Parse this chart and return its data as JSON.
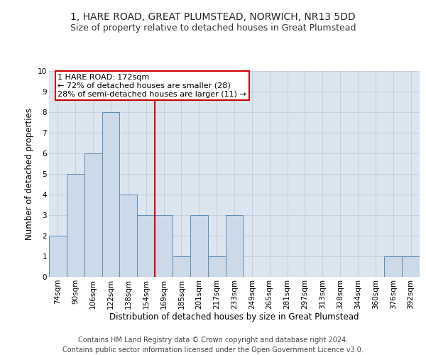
{
  "title": "1, HARE ROAD, GREAT PLUMSTEAD, NORWICH, NR13 5DD",
  "subtitle": "Size of property relative to detached houses in Great Plumstead",
  "xlabel": "Distribution of detached houses by size in Great Plumstead",
  "ylabel": "Number of detached properties",
  "categories": [
    "74sqm",
    "90sqm",
    "106sqm",
    "122sqm",
    "138sqm",
    "154sqm",
    "169sqm",
    "185sqm",
    "201sqm",
    "217sqm",
    "233sqm",
    "249sqm",
    "265sqm",
    "281sqm",
    "297sqm",
    "313sqm",
    "328sqm",
    "344sqm",
    "360sqm",
    "376sqm",
    "392sqm"
  ],
  "values": [
    2,
    5,
    6,
    8,
    4,
    3,
    3,
    1,
    3,
    1,
    3,
    0,
    0,
    0,
    0,
    0,
    0,
    0,
    0,
    1,
    1
  ],
  "bar_color": "#ccd9e8",
  "bar_edge_color": "#5b8db8",
  "grid_color": "#c8d0dc",
  "background_color": "#dce6f0",
  "vline_x": 5.5,
  "vline_color": "#cc0000",
  "annotation_text": "1 HARE ROAD: 172sqm\n← 72% of detached houses are smaller (28)\n28% of semi-detached houses are larger (11) →",
  "annotation_box_color": "#ffffff",
  "annotation_box_edge": "#cc0000",
  "ylim": [
    0,
    10
  ],
  "yticks": [
    0,
    1,
    2,
    3,
    4,
    5,
    6,
    7,
    8,
    9,
    10
  ],
  "footer_line1": "Contains HM Land Registry data © Crown copyright and database right 2024.",
  "footer_line2": "Contains public sector information licensed under the Open Government Licence v3.0.",
  "title_fontsize": 10,
  "subtitle_fontsize": 9,
  "axis_label_fontsize": 8.5,
  "tick_fontsize": 7.5,
  "annotation_fontsize": 8,
  "footer_fontsize": 7
}
